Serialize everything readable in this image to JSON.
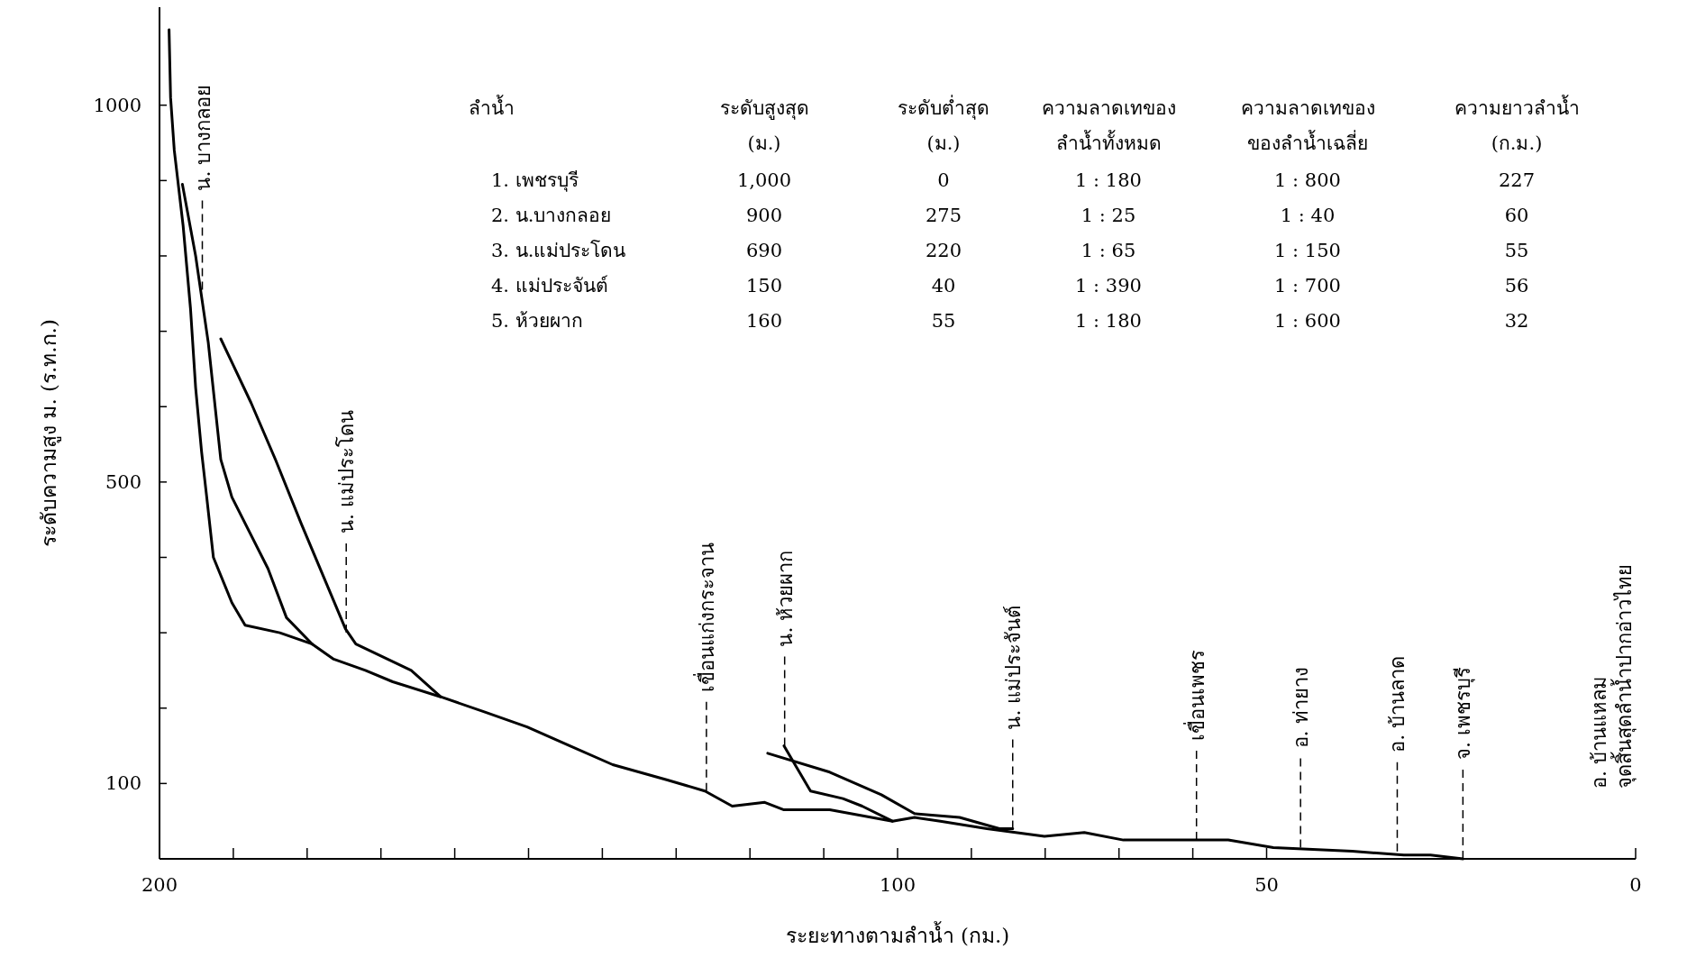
{
  "chart_data": {
    "type": "line",
    "xlabel": "ระยะทางตามลำน้ำ (กม.)",
    "ylabel": "ระดับความสูง ม. (ร.ท.ก.)",
    "xlim": [
      200,
      0
    ],
    "ylim": [
      0,
      1130
    ],
    "xticks": [
      200,
      {
        "value": 190,
        "label": null
      },
      {
        "value": 180,
        "label": null
      },
      {
        "value": 170,
        "label": null
      },
      {
        "value": 160,
        "label": null
      },
      {
        "value": 150,
        "label": null
      },
      {
        "value": 140,
        "label": null
      },
      {
        "value": 130,
        "label": null
      },
      {
        "value": 120,
        "label": null
      },
      {
        "value": 110,
        "label": null
      },
      100,
      {
        "value": 90,
        "label": null
      },
      {
        "value": 80,
        "label": null
      },
      {
        "value": 70,
        "label": null
      },
      {
        "value": 60,
        "label": null
      },
      50,
      0
    ],
    "yticks": [
      {
        "value": 0,
        "label": null
      },
      100,
      {
        "value": 200,
        "label": null
      },
      {
        "value": 300,
        "label": null
      },
      {
        "value": 400,
        "label": null
      },
      500,
      {
        "value": 600,
        "label": null
      },
      {
        "value": 700,
        "label": null
      },
      {
        "value": 800,
        "label": null
      },
      {
        "value": 900,
        "label": null
      },
      1000
    ],
    "grid": false,
    "marker": "none",
    "line_style": "solid",
    "series": [
      {
        "color": "#000000",
        "x": [
          198.7,
          198.5,
          198.0,
          196.8,
          195.8,
          195.1,
          194.3,
          193.6,
          192.7,
          190.2,
          188.4,
          183.7,
          179.3,
          176.4,
          172.1,
          168.4,
          161.9,
          156.0,
          150.2,
          144.4,
          138.6,
          131.3,
          126.1,
          122.4,
          118.0,
          115.4,
          109.2,
          100.7,
          97.7,
          94.2,
          87.9,
          80.1,
          74.7,
          69.4,
          55.2,
          49.1,
          38.4,
          31.4,
          27.8,
          23.4
        ],
        "values": [
          1100,
          1010,
          940,
          840,
          730,
          625,
          540,
          480,
          400,
          340,
          310,
          300,
          285,
          265,
          250,
          235,
          215,
          195,
          175,
          150,
          125,
          105,
          90,
          70,
          75,
          65,
          65,
          50,
          55,
          50,
          40,
          30,
          35,
          25,
          25,
          15,
          10,
          5,
          5,
          0
        ]
      },
      {
        "color": "#000000",
        "x": [
          196.9,
          195.1,
          193.4,
          191.7,
          190.2,
          185.3,
          182.8,
          179.3
        ],
        "values": [
          895,
          800,
          685,
          530,
          480,
          385,
          320,
          285
        ]
      },
      {
        "color": "#000000",
        "x": [
          191.7,
          187.6,
          184.3,
          180.8,
          174.8,
          173.4,
          165.9,
          161.9
        ],
        "values": [
          690,
          605,
          530,
          445,
          305,
          285,
          250,
          215
        ]
      },
      {
        "color": "#000000",
        "x": [
          117.6,
          109.2,
          102.2,
          97.7,
          91.6,
          86.2,
          84.4
        ],
        "values": [
          140,
          115,
          85,
          60,
          55,
          40,
          40
        ]
      },
      {
        "color": "#000000",
        "x": [
          115.4,
          111.8,
          107.4,
          104.8,
          100.7
        ],
        "values": [
          150,
          90,
          80,
          70,
          50
        ]
      }
    ],
    "annotations": [
      {
        "text": "น. บางกลอย",
        "x": 194.2,
        "y": 755
      },
      {
        "text": "น. แม่ประโดน",
        "x": 174.7,
        "y": 300
      },
      {
        "text": "เขื่อนแก่งกระจาน",
        "x": 125.9,
        "y": 90
      },
      {
        "text": "น. ห้วยผาก",
        "x": 115.3,
        "y": 150
      },
      {
        "text": "น. แม่ประจันต์",
        "x": 84.4,
        "y": 40
      },
      {
        "text": "เขื่อนเพชร",
        "x": 59.5,
        "y": 25
      },
      {
        "text": "อ. ท่ายาง",
        "x": 45.4,
        "y": 15
      },
      {
        "text": "อ. บ้านลาด",
        "x": 32.3,
        "y": 10
      },
      {
        "text": "จ. เพชรบุรี",
        "x": 23.4,
        "y": 0
      },
      "ลำน้ำ",
      "ระดับสูงสุด\n(ม.)",
      "ระดับต่ำสุด\n(ม.)",
      "ความลาดเทของ\nลำน้ำทั้งหมด",
      "ความลาดเทของ\nของลำน้ำเฉลี่ย",
      "ความยาวลำน้ำ\n(ก.ม.)",
      "1. เพชรบุรี",
      "1,000",
      "0",
      "1 : 180",
      "1 : 800",
      "227",
      "2. น.บางกลอย",
      "900",
      "275",
      "1 : 25",
      "1 : 40",
      "60",
      "3. น.แม่ประโดน",
      "690",
      "220",
      "1 : 65",
      "1 : 150",
      "55",
      "4. แม่ประจันต์",
      "150",
      "40",
      "1 : 390",
      "1 : 700",
      "56",
      "5. ห้วยผาก",
      "160",
      "55",
      "1 : 180",
      "1 : 600",
      "32",
      "อ. บ้านแหลม\nจุดสิ้นสุดลำน้ำปากอ่าวไทย"
    ]
  }
}
